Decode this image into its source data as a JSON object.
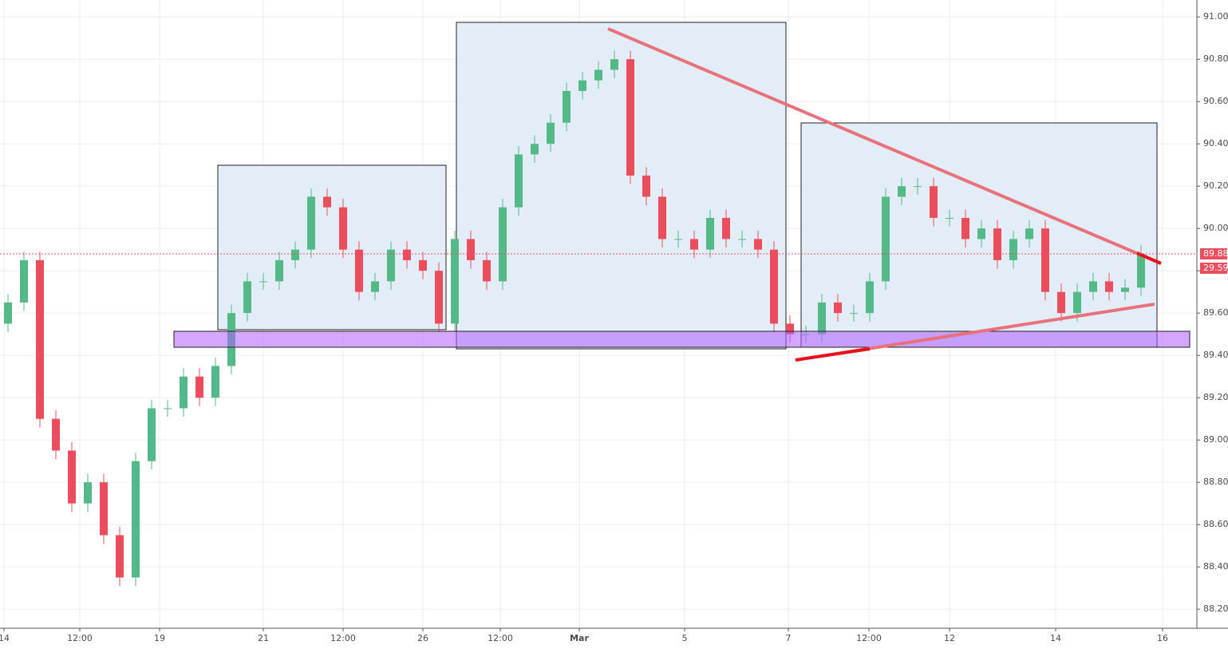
{
  "chart_data": {
    "type": "candlestick",
    "x": [
      0.5,
      1.5,
      2.5,
      3.5,
      4.5,
      5.5,
      6.5,
      7.5,
      8.5,
      9.5,
      10.5,
      11.5,
      12.5,
      13.5,
      14.5,
      15.5,
      16.5,
      17.5,
      18.5,
      19.5,
      20.5,
      21.5,
      22.5,
      23.5,
      24.5,
      25.5,
      26.5,
      27.5,
      28.5,
      29.5,
      30.5,
      31.5,
      32.5,
      33.5,
      34.5,
      35.5,
      36.5,
      37.5,
      38.5,
      39.5,
      40.5,
      41.5,
      42.5,
      43.5,
      44.5,
      45.5,
      46.5,
      47.5,
      48.5,
      49.5,
      50.5,
      51.5,
      52.5,
      53.5,
      54.5,
      55.5,
      56.5,
      57.5,
      58.5,
      59.5,
      60.5,
      61.5,
      62.5,
      63.5,
      64.5,
      65.5,
      66.5,
      67.5,
      68.5,
      69.5,
      70.5,
      71.5
    ],
    "open": [
      89.55,
      89.65,
      89.85,
      89.1,
      88.95,
      88.7,
      88.8,
      88.55,
      88.35,
      88.9,
      89.15,
      89.15,
      89.3,
      89.2,
      89.35,
      89.6,
      89.75,
      89.75,
      89.85,
      89.9,
      90.15,
      90.1,
      89.9,
      89.7,
      89.75,
      89.9,
      89.85,
      89.8,
      89.55,
      89.95,
      89.85,
      89.75,
      90.1,
      90.35,
      90.4,
      90.5,
      90.65,
      90.7,
      90.75,
      90.8,
      90.25,
      90.15,
      89.95,
      89.95,
      89.9,
      90.05,
      89.95,
      89.95,
      89.9,
      89.55,
      89.5,
      89.5,
      89.65,
      89.6,
      89.6,
      89.75,
      90.15,
      90.2,
      90.2,
      90.05,
      90.05,
      89.95,
      90.0,
      89.85,
      89.95,
      90.0,
      89.7,
      89.6,
      89.7,
      89.75,
      89.7,
      89.72
    ],
    "high": [
      89.69,
      89.89,
      89.89,
      89.14,
      88.99,
      88.84,
      88.84,
      88.59,
      88.94,
      89.19,
      89.19,
      89.34,
      89.34,
      89.39,
      89.64,
      89.79,
      89.79,
      89.89,
      89.94,
      90.19,
      90.19,
      90.14,
      89.94,
      89.79,
      89.94,
      89.94,
      89.89,
      89.84,
      89.99,
      89.99,
      89.89,
      90.14,
      90.39,
      90.44,
      90.54,
      90.69,
      90.74,
      90.79,
      90.84,
      90.84,
      90.29,
      90.19,
      89.99,
      89.99,
      90.09,
      90.09,
      89.99,
      89.99,
      89.94,
      89.59,
      89.54,
      89.69,
      89.69,
      89.64,
      89.79,
      90.19,
      90.24,
      90.24,
      90.24,
      90.09,
      90.09,
      90.04,
      90.04,
      89.99,
      90.04,
      90.04,
      89.74,
      89.74,
      89.79,
      89.79,
      89.76,
      89.92
    ],
    "low": [
      89.51,
      89.61,
      89.06,
      88.91,
      88.66,
      88.66,
      88.51,
      88.31,
      88.31,
      88.86,
      89.11,
      89.11,
      89.16,
      89.16,
      89.31,
      89.56,
      89.71,
      89.71,
      89.81,
      89.86,
      90.06,
      89.86,
      89.66,
      89.66,
      89.71,
      89.81,
      89.76,
      89.51,
      89.51,
      89.81,
      89.71,
      89.71,
      90.06,
      90.31,
      90.36,
      90.46,
      90.61,
      90.66,
      90.71,
      90.21,
      90.11,
      89.91,
      89.91,
      89.86,
      89.86,
      89.91,
      89.91,
      89.86,
      89.51,
      89.46,
      89.46,
      89.46,
      89.56,
      89.56,
      89.56,
      89.71,
      90.11,
      90.16,
      90.01,
      90.01,
      89.91,
      89.91,
      89.81,
      89.81,
      89.91,
      89.66,
      89.56,
      89.56,
      89.66,
      89.66,
      89.66,
      89.68
    ],
    "close": [
      89.65,
      89.85,
      89.1,
      88.95,
      88.7,
      88.8,
      88.55,
      88.35,
      88.9,
      89.15,
      89.15,
      89.3,
      89.2,
      89.35,
      89.6,
      89.75,
      89.75,
      89.85,
      89.9,
      90.15,
      90.1,
      89.9,
      89.7,
      89.75,
      89.9,
      89.85,
      89.8,
      89.55,
      89.95,
      89.85,
      89.75,
      90.1,
      90.35,
      90.4,
      90.5,
      90.65,
      90.7,
      90.75,
      90.8,
      90.25,
      90.15,
      89.95,
      89.95,
      89.9,
      90.05,
      89.95,
      89.95,
      89.9,
      89.55,
      89.5,
      89.5,
      89.65,
      89.6,
      89.6,
      89.75,
      90.15,
      90.2,
      90.2,
      90.05,
      90.05,
      89.95,
      90.0,
      89.85,
      89.95,
      90.0,
      89.7,
      89.6,
      89.7,
      89.75,
      89.7,
      89.72,
      89.88
    ],
    "up_color": "#53b987",
    "down_color": "#eb4d5c",
    "xlim": [
      0,
      75
    ],
    "ylim": [
      88.11,
      91.08
    ],
    "xticks": [
      {
        "value": 0.25,
        "label": "14"
      },
      {
        "value": 5,
        "label": "12:00"
      },
      {
        "value": 10,
        "label": "19"
      },
      {
        "value": 16.5,
        "label": "21"
      },
      {
        "value": 21.5,
        "label": "12:00"
      },
      {
        "value": 26.5,
        "label": "26"
      },
      {
        "value": 31.35,
        "label": "12:00"
      },
      {
        "value": 36.3,
        "label": "Mar"
      },
      {
        "value": 42.9,
        "label": "5"
      },
      {
        "value": 49.4,
        "label": "7"
      },
      {
        "value": 54.45,
        "label": "12:00"
      },
      {
        "value": 59.5,
        "label": "12"
      },
      {
        "value": 66.15,
        "label": "14"
      },
      {
        "value": 72.85,
        "label": "16"
      }
    ],
    "yticks": [
      {
        "value": 88.2,
        "label": "88.20"
      },
      {
        "value": 88.4,
        "label": "88.40"
      },
      {
        "value": 88.6,
        "label": "88.60"
      },
      {
        "value": 88.8,
        "label": "88.80"
      },
      {
        "value": 89.0,
        "label": "89.00"
      },
      {
        "value": 89.2,
        "label": "89.20"
      },
      {
        "value": 89.4,
        "label": "89.40"
      },
      {
        "value": 89.6,
        "label": "89.60"
      },
      {
        "value": 89.8,
        "label": "89.80"
      },
      {
        "value": 90.0,
        "label": "90.00"
      },
      {
        "value": 90.2,
        "label": "90.20"
      },
      {
        "value": 90.4,
        "label": "90.40"
      },
      {
        "value": 90.6,
        "label": "90.60"
      },
      {
        "value": 90.8,
        "label": "90.80"
      },
      {
        "value": 91.0,
        "label": "91.00"
      }
    ],
    "grid": true,
    "last_price": 89.88,
    "last_price_color": "#eb4d5c",
    "timer_label": "29.59"
  }
}
